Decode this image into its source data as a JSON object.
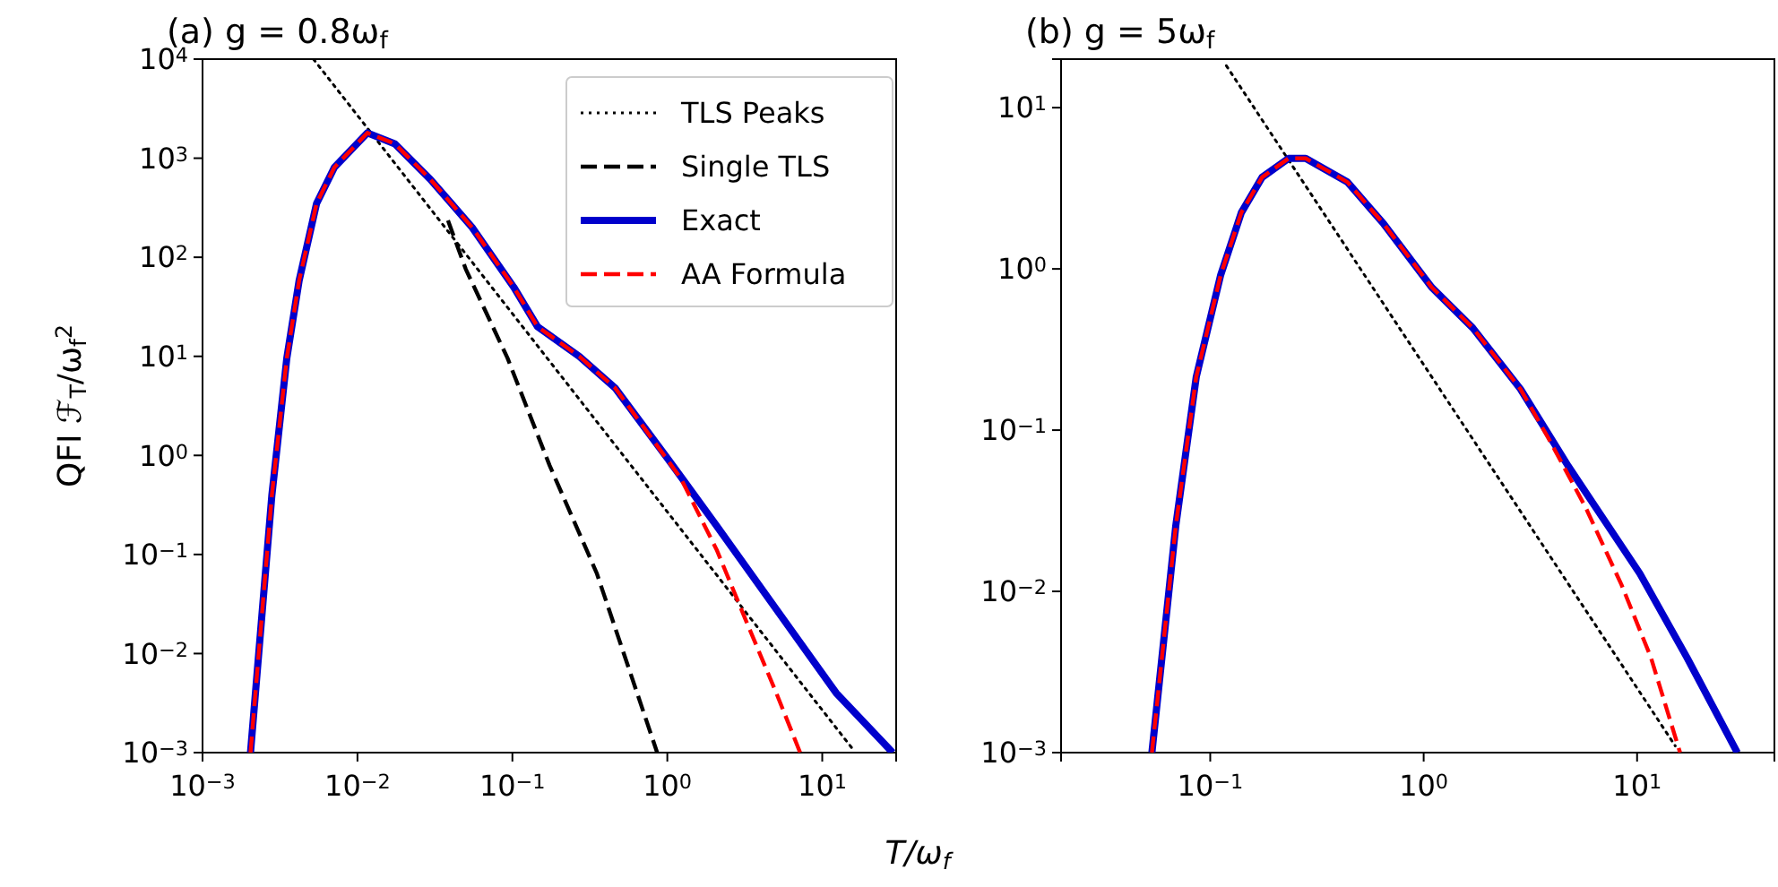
{
  "chart_data": [
    {
      "type": "line",
      "title": "(a)   g = 0.8ω$_{f}$",
      "xlabel": "T/ω$_{f}$",
      "ylabel": "QFI ℱ$_{T}$/ω$_{f}$$^{2}$",
      "log": "xy",
      "legend": "top right",
      "xlim": [
        0.001,
        30
      ],
      "ylim": [
        0.001,
        10000
      ],
      "xticks": [
        {
          "value": 0.001,
          "label": "10$^{−3}$"
        },
        {
          "value": 0.01,
          "label": "10$^{−2}$"
        },
        {
          "value": 0.1,
          "label": "10$^{−1}$"
        },
        {
          "value": 1,
          "label": "10$^{0}$"
        },
        {
          "value": 10,
          "label": "10$^{1}$"
        }
      ],
      "yticks": [
        {
          "value": 0.001,
          "label": "10$^{−3}$"
        },
        {
          "value": 0.01,
          "label": "10$^{−2}$"
        },
        {
          "value": 0.1,
          "label": "10$^{−1}$"
        },
        {
          "value": 1,
          "label": "10$^{0}$"
        },
        {
          "value": 10,
          "label": "10$^{1}$"
        },
        {
          "value": 100,
          "label": "10$^{2}$"
        },
        {
          "value": 1000,
          "label": "10$^{3}$"
        },
        {
          "value": 10000,
          "label": "10$^{4}$"
        }
      ],
      "series": [
        {
          "name": "TLS Peaks",
          "color": "#000000",
          "line_style": "dotted",
          "x": [
            0.0052,
            16
          ],
          "values": [
            10000,
            0.00105
          ]
        },
        {
          "name": "Single TLS",
          "color": "#000000",
          "line_style": "dashed",
          "x": [
            0.0384,
            0.05,
            0.093,
            0.174,
            0.35,
            0.86
          ],
          "values": [
            235,
            76,
            9.6,
            0.79,
            0.065,
            0.001
          ]
        },
        {
          "name": "Exact",
          "color": "#0000cc",
          "line_style": "solid",
          "x": [
            0.00204,
            0.0028,
            0.0035,
            0.0042,
            0.00545,
            0.0071,
            0.0116,
            0.0174,
            0.0296,
            0.055,
            0.102,
            0.145,
            0.27,
            0.46,
            1.02,
            2.08,
            5.05,
            12.3,
            28.5
          ],
          "values": [
            0.001,
            0.39,
            9.6,
            58,
            350,
            810,
            1800,
            1400,
            610,
            200,
            50,
            20,
            10,
            4.8,
            0.9,
            0.195,
            0.028,
            0.004,
            0.001
          ]
        },
        {
          "name": "AA Formula",
          "color": "#ff0000",
          "line_style": "dashed",
          "x": [
            0.00204,
            0.0028,
            0.0035,
            0.0042,
            0.00545,
            0.0071,
            0.0116,
            0.0174,
            0.0296,
            0.055,
            0.102,
            0.145,
            0.27,
            0.46,
            1.22,
            2.08,
            3.24,
            5.05,
            7.2
          ],
          "values": [
            0.001,
            0.39,
            9.6,
            58,
            350,
            810,
            1800,
            1400,
            610,
            200,
            50,
            20,
            10,
            4.8,
            0.59,
            0.112,
            0.021,
            0.004,
            0.001
          ]
        }
      ]
    },
    {
      "type": "line",
      "title": "(b)   g = 5ω$_{f}$",
      "log": "xy",
      "legend": false,
      "xlim": [
        0.02,
        44
      ],
      "ylim": [
        0.001,
        20
      ],
      "xticks": [
        {
          "value": 0.1,
          "label": "10$^{−1}$"
        },
        {
          "value": 1,
          "label": "10$^{0}$"
        },
        {
          "value": 10,
          "label": "10$^{1}$"
        }
      ],
      "yticks": [
        {
          "value": 0.001,
          "label": "10$^{−3}$"
        },
        {
          "value": 0.01,
          "label": "10$^{−2}$"
        },
        {
          "value": 0.1,
          "label": "10$^{−1}$"
        },
        {
          "value": 1,
          "label": "10$^{0}$"
        },
        {
          "value": 10,
          "label": "10$^{1}$"
        }
      ],
      "series": [
        {
          "color": "#000000",
          "line_style": "dotted",
          "x": [
            0.119,
            15.1
          ],
          "values": [
            18.2,
            0.0011
          ]
        },
        {
          "color": "#0000cc",
          "line_style": "solid",
          "x": [
            0.0533,
            0.069,
            0.086,
            0.112,
            0.14,
            0.175,
            0.233,
            0.28,
            0.44,
            0.65,
            1.09,
            1.7,
            2.84,
            4.75,
            10.3,
            17.1,
            29.5
          ],
          "values": [
            0.001,
            0.0257,
            0.214,
            0.92,
            2.24,
            3.7,
            4.85,
            4.85,
            3.45,
            1.9,
            0.77,
            0.43,
            0.18,
            0.06,
            0.0129,
            0.0039,
            0.001
          ]
        },
        {
          "color": "#ff0000",
          "line_style": "dashed",
          "x": [
            0.0533,
            0.069,
            0.086,
            0.112,
            0.14,
            0.175,
            0.233,
            0.28,
            0.44,
            0.65,
            1.09,
            1.7,
            2.84,
            3.92,
            5.75,
            8.45,
            11.6,
            15.9
          ],
          "values": [
            0.001,
            0.0257,
            0.214,
            0.92,
            2.24,
            3.7,
            4.85,
            4.85,
            3.45,
            1.9,
            0.77,
            0.43,
            0.18,
            0.085,
            0.033,
            0.011,
            0.0039,
            0.001
          ]
        }
      ]
    }
  ]
}
